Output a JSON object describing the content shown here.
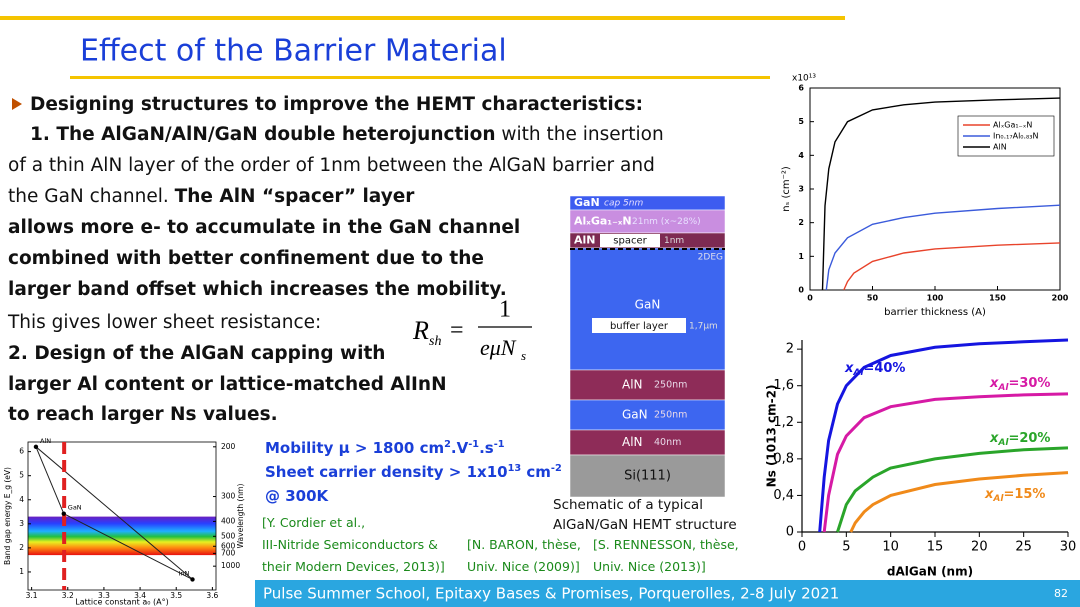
{
  "header": {
    "title": "Effect of the Barrier Material"
  },
  "body": {
    "lines": [
      [
        {
          "text": "Designing structures to improve the HEMT characteristics:",
          "bold": true
        }
      ],
      [
        {
          "text": "1. The AlGaN/AlN/GaN double heterojunction",
          "bold": true
        },
        {
          "text": " with the insertion",
          "bold": false
        }
      ],
      [
        {
          "text": "of a thin AlN layer of the order of 1nm between the AlGaN barrier and",
          "bold": false
        }
      ],
      [
        {
          "text": "the GaN channel. ",
          "bold": false
        },
        {
          "text": "The AlN “spacer” layer",
          "bold": true
        }
      ],
      [
        {
          "text": "allows more e- to accumulate in the GaN channel",
          "bold": true
        }
      ],
      [
        {
          "text": "combined with better confinement due to the",
          "bold": true
        }
      ],
      [
        {
          "text": "larger band offset which increases the mobility.",
          "bold": true
        }
      ],
      [
        {
          "text": "This gives lower sheet resistance:",
          "bold": false
        }
      ],
      [
        {
          "text": "2. Design of the AlGaN capping with",
          "bold": true
        }
      ],
      [
        {
          "text": "larger Al content or lattice-matched AlInN",
          "bold": true
        }
      ],
      [
        {
          "text": "to reach larger Ns values.",
          "bold": true
        }
      ]
    ]
  },
  "formula": {
    "lhs": "R",
    "lhs_sub": "sh",
    "equals": "=",
    "numerator": "1",
    "denominator": "eμN",
    "denominator_sub": "s"
  },
  "properties": [
    [
      {
        "text": "Mobility μ > 1800 cm"
      },
      {
        "text": "2",
        "sup": true
      },
      {
        "text": ".V"
      },
      {
        "text": "-1",
        "sup": true
      },
      {
        "text": ".s"
      },
      {
        "text": "-1",
        "sup": true
      }
    ],
    [
      {
        "text": "Sheet carrier density > 1x10"
      },
      {
        "text": "13",
        "sup": true
      },
      {
        "text": " cm"
      },
      {
        "text": "-2",
        "sup": true
      }
    ],
    [
      {
        "text": "@ 300K"
      }
    ]
  ],
  "references": [
    [
      "[Y. Cordier et al.,",
      "III-Nitride Semiconductors &",
      "their Modern Devices, 2013)]"
    ],
    [
      "[N. BARON, thèse,",
      "Univ. Nice (2009)]"
    ],
    [
      "[S. RENNESSON, thèse,",
      "Univ. Nice (2013)]"
    ]
  ],
  "layer_stack": {
    "layers": [
      {
        "name": "GaN",
        "detail": "cap 5nm",
        "color": "#3d5cf0"
      },
      {
        "name": "AlₓGa₁₋ₓN",
        "detail": "21nm (x~28%)",
        "color": "#c98ee0"
      },
      {
        "name": "AlN",
        "box": "spacer",
        "detail": "1nm",
        "color": "#7d2a52"
      },
      {
        "name": "GaN",
        "box": "buffer layer",
        "detail": "1,7µm",
        "color": "#3d66f0"
      },
      {
        "name": "AlN",
        "detail": "250nm",
        "color": "#8e2c58"
      },
      {
        "name": "GaN",
        "detail": "250nm",
        "color": "#3d66f0"
      },
      {
        "name": "AlN",
        "detail": "40nm",
        "color": "#8e2c58"
      },
      {
        "name": "Si(111)",
        "color": "#9a9a9a"
      }
    ],
    "channel_label": "2DEG",
    "caption": [
      "Schematic of a typical",
      "AlGaN/GaN HEMT structure"
    ]
  },
  "charts": {
    "top": {
      "type": "line",
      "multiplier": "x10¹³",
      "ylabel": "nₛ (cm⁻²)",
      "xlabel": "barrier thickness (A)",
      "xlim": [
        0,
        200
      ],
      "xticks": [
        0,
        50,
        100,
        150,
        200
      ],
      "ylim": [
        0,
        6
      ],
      "yticks": [
        0,
        1,
        2,
        3,
        4,
        5,
        6
      ],
      "series": [
        {
          "name": "AlₓGa₁₋ₓN",
          "color": "#e8432b",
          "x": [
            27,
            30,
            35,
            50,
            75,
            100,
            150,
            200
          ],
          "values": [
            0,
            0.25,
            0.5,
            0.85,
            1.1,
            1.22,
            1.33,
            1.4
          ]
        },
        {
          "name": "In₀.₁₇Al₀.₈₃N",
          "color": "#3b5bdb",
          "x": [
            13,
            15,
            20,
            30,
            50,
            75,
            100,
            150,
            200
          ],
          "values": [
            0,
            0.6,
            1.1,
            1.55,
            1.95,
            2.15,
            2.28,
            2.42,
            2.52
          ]
        },
        {
          "name": "AlN",
          "color": "#000000",
          "x": [
            10,
            12,
            15,
            20,
            30,
            50,
            75,
            100,
            150,
            200
          ],
          "values": [
            0,
            2.5,
            3.6,
            4.4,
            5.0,
            5.35,
            5.5,
            5.58,
            5.65,
            5.7
          ]
        }
      ]
    },
    "bottom": {
      "type": "line",
      "ylabel": "Ns (1013 cm-2)",
      "xlabel": "dAlGaN (nm)",
      "xlim": [
        0,
        30
      ],
      "xticks": [
        0,
        5,
        10,
        15,
        20,
        25,
        30
      ],
      "ylim": [
        0,
        2.1
      ],
      "yticks": [
        0,
        {
          "value": 0.4,
          "label": "0,4"
        },
        {
          "value": 0.8,
          "label": "0,8"
        },
        {
          "value": 1.2,
          "label": "1,2"
        },
        {
          "value": 1.6,
          "label": "1,6"
        },
        2
      ],
      "series": [
        {
          "label_main": "x",
          "label_sub": "Al",
          "label_rest": "=40%",
          "color": "#1515e0",
          "x": [
            2,
            2.5,
            3,
            4,
            5,
            7,
            10,
            15,
            20,
            25,
            30
          ],
          "values": [
            0,
            0.6,
            1.0,
            1.4,
            1.6,
            1.8,
            1.93,
            2.02,
            2.06,
            2.08,
            2.1
          ]
        },
        {
          "label_main": "x",
          "label_sub": "Al",
          "label_rest": "=30%",
          "color": "#d61aa5",
          "x": [
            2.5,
            3,
            4,
            5,
            7,
            10,
            15,
            20,
            25,
            30
          ],
          "values": [
            0,
            0.4,
            0.85,
            1.05,
            1.25,
            1.37,
            1.45,
            1.48,
            1.5,
            1.51
          ]
        },
        {
          "label_main": "x",
          "label_sub": "Al",
          "label_rest": "=20%",
          "color": "#2aa52a",
          "x": [
            4,
            5,
            6,
            8,
            10,
            15,
            20,
            25,
            30
          ],
          "values": [
            0,
            0.3,
            0.45,
            0.6,
            0.7,
            0.8,
            0.86,
            0.9,
            0.92
          ]
        },
        {
          "label_main": "x",
          "label_sub": "Al",
          "label_rest": "=15%",
          "color": "#f08a1a",
          "x": [
            5.5,
            6,
            7,
            8,
            10,
            15,
            20,
            25,
            30
          ],
          "values": [
            0,
            0.1,
            0.22,
            0.3,
            0.4,
            0.52,
            0.58,
            0.62,
            0.65
          ]
        }
      ]
    },
    "bandgap": {
      "type": "scatter",
      "ylabel": "Band gap energy E_g (eV)",
      "y2label": "Wavelength (nm)",
      "xlabel": "Lattice constant a₀ (A°)",
      "xlim": [
        3.09,
        3.61
      ],
      "xticks": [
        3.1,
        3.2,
        3.3,
        3.4,
        3.5,
        3.6
      ],
      "ylim": [
        0.25,
        6.4
      ],
      "yticks": [
        1,
        2,
        3,
        4,
        5,
        6
      ],
      "y2ticks": [
        200,
        300,
        400,
        500,
        600,
        700,
        1000
      ],
      "points": [
        {
          "name": "AlN",
          "x": 3.112,
          "y": 6.2
        },
        {
          "name": "GaN",
          "x": 3.189,
          "y": 3.42
        },
        {
          "name": "InN",
          "x": 3.545,
          "y": 0.69
        }
      ],
      "vline": 3.19,
      "vline_color": "#e02020"
    }
  },
  "footer": {
    "text": "Pulse Summer School, Epitaxy Bases & Promises, Porquerolles, 2-8 July 2021",
    "page": "82"
  }
}
